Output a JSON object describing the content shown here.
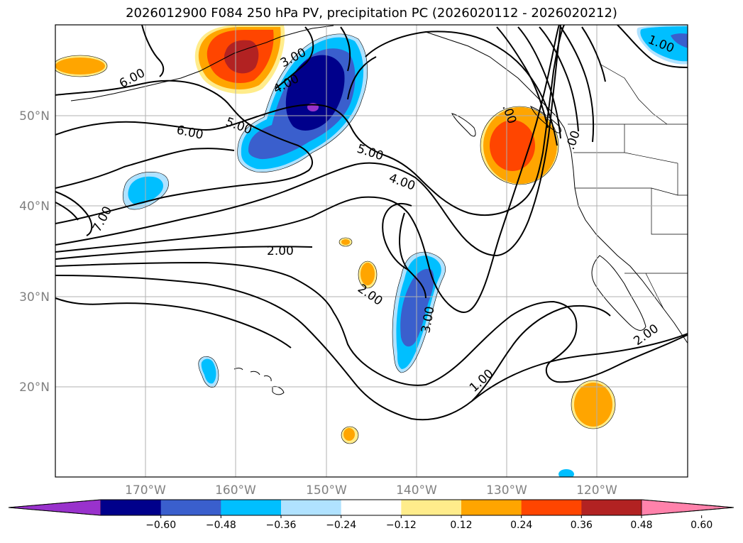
{
  "title": "2026012900 F084 250 hPa PV, precipitation PC (2026020112 - 2026020212)",
  "latitude_labels": [
    "50°N",
    "40°N",
    "30°N",
    "20°N"
  ],
  "longitude_labels": [
    "170°W",
    "160°W",
    "150°W",
    "140°W",
    "130°W",
    "120°W"
  ],
  "pv_contour_labels": [
    "6.00",
    "6.00",
    "5.00",
    "5.00",
    "4.00",
    "4.00",
    "3.00",
    "3.00",
    "2.00",
    "2.00",
    "2.00",
    "1.00",
    "1.00",
    "7.00",
    ".00",
    ".00"
  ],
  "colorbar": {
    "tick_labels": [
      "−0.60",
      "−0.48",
      "−0.36",
      "−0.24",
      "−0.12",
      "0.12",
      "0.24",
      "0.36",
      "0.48",
      "0.60"
    ],
    "colors": [
      "#9932cc",
      "#00008b",
      "#3a5fcd",
      "#00bfff",
      "#b0e2ff",
      "#ffffff",
      "#ffec8b",
      "#ffa500",
      "#ff4500",
      "#b22222",
      "#ff82ab"
    ]
  },
  "colors": {
    "negative_strong": "#00008b",
    "negative_mid": "#3a5fcd",
    "negative_light": "#00bfff",
    "negative_pale": "#b0e2ff",
    "positive_pale": "#ffec8b",
    "positive_light": "#ffa500",
    "positive_mid": "#ff4500",
    "positive_strong": "#b22222",
    "gridline": "#b0b0b0"
  }
}
